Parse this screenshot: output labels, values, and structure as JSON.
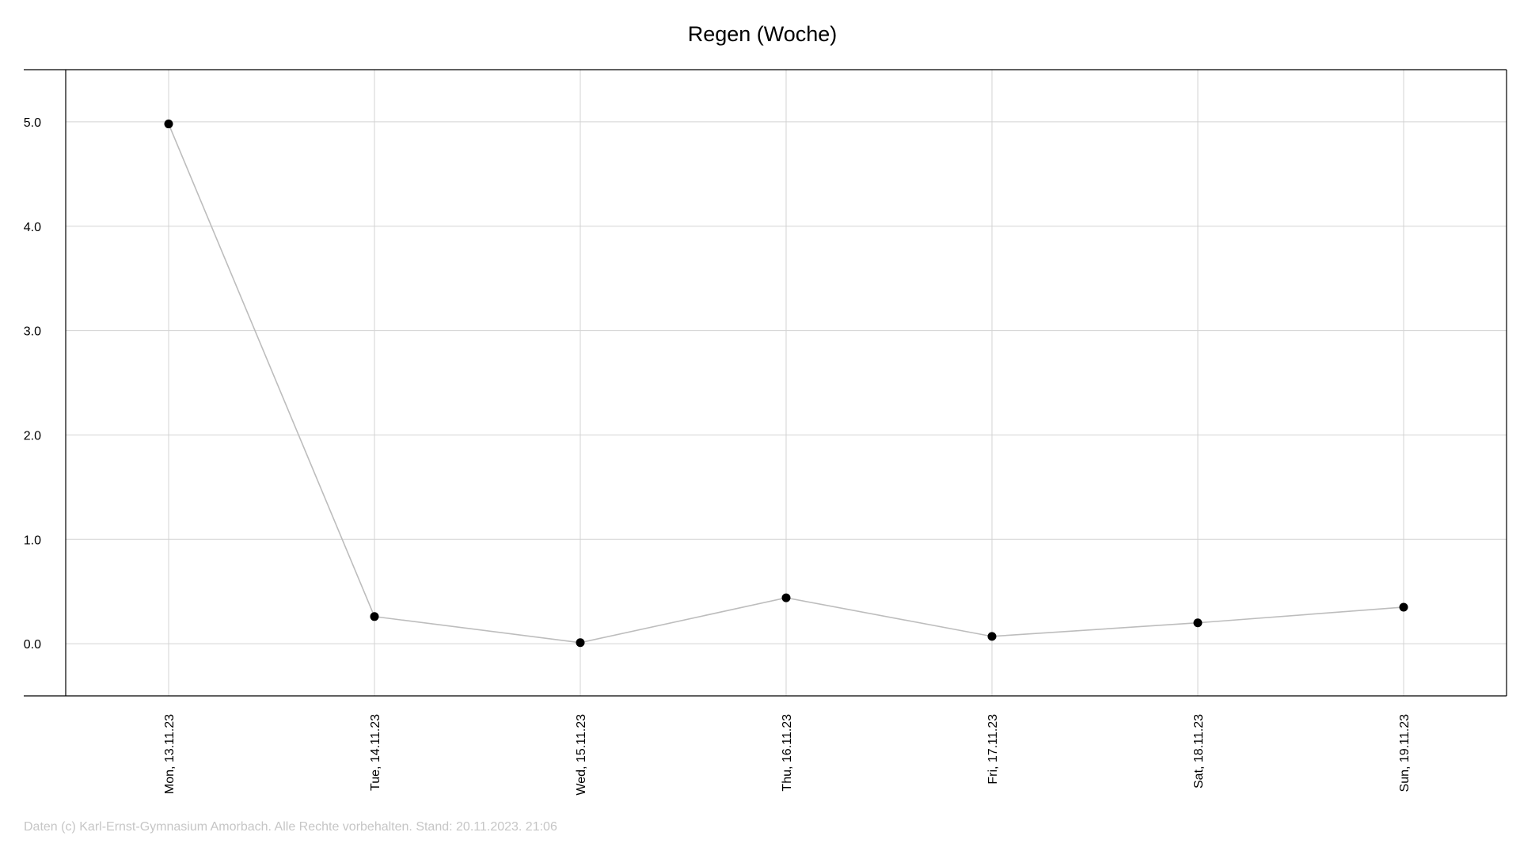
{
  "chart_data": {
    "type": "line",
    "title": "Regen (Woche)",
    "xlabel": "",
    "ylabel": "",
    "categories": [
      "Mon, 13.11.23",
      "Tue, 14.11.23",
      "Wed, 15.11.23",
      "Thu, 16.11.23",
      "Fri, 17.11.23",
      "Sat, 18.11.23",
      "Sun, 19.11.23"
    ],
    "series": [
      {
        "values": [
          4.98,
          0.26,
          0.01,
          0.44,
          0.07,
          0.2,
          0.35
        ]
      }
    ],
    "yticks": [
      "0.0",
      "1.0",
      "2.0",
      "3.0",
      "4.0",
      "5.0"
    ],
    "ylim": [
      -0.5,
      5.5
    ],
    "grid": true,
    "legend": "none",
    "colors": {
      "line": "#bdbdbd",
      "marker": "#000000",
      "grid": "#d3d3d3",
      "axis": "#000000"
    }
  },
  "footer": "Daten (c) Karl-Ernst-Gymnasium Amorbach. Alle Rechte vorbehalten. Stand: 20.11.2023. 21:06"
}
